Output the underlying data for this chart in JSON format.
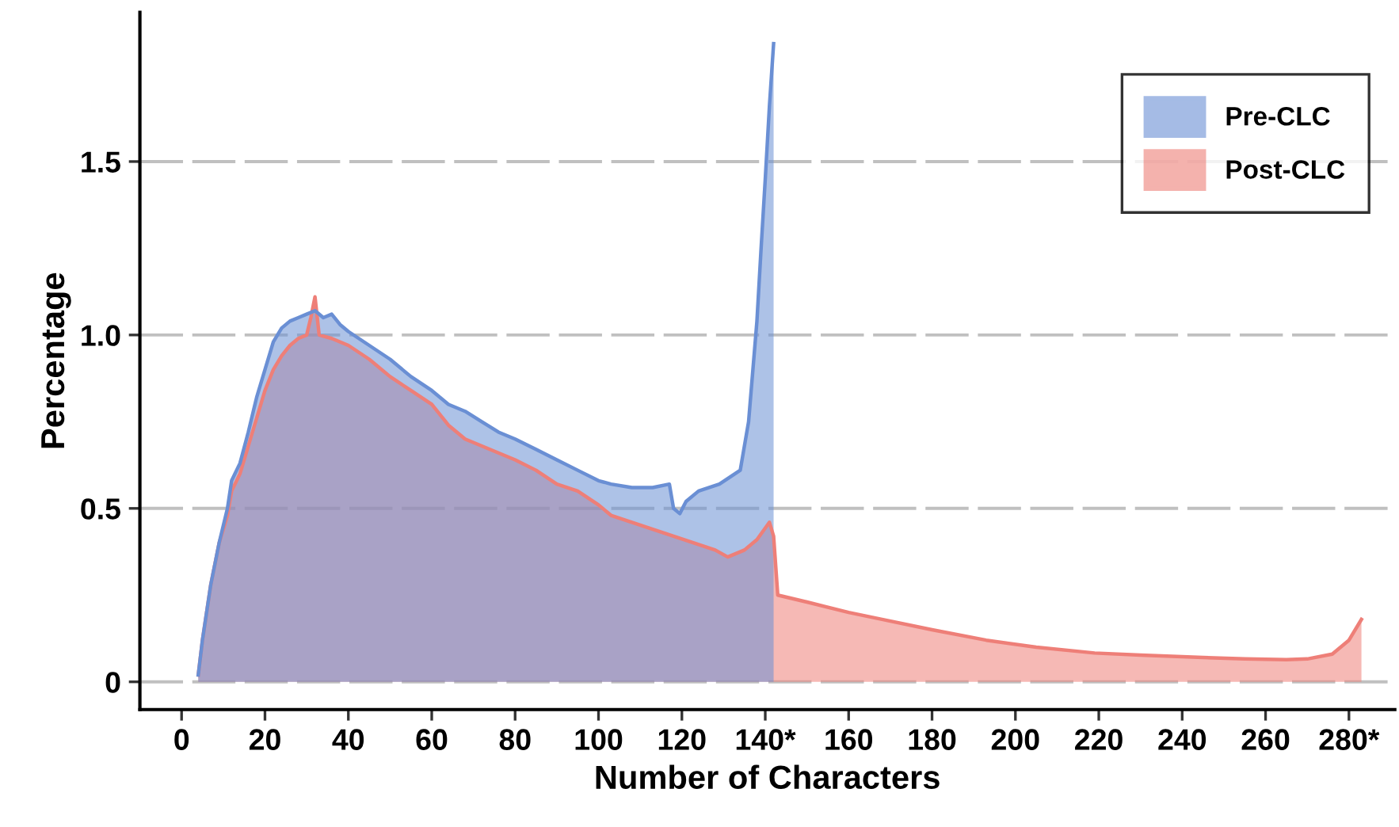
{
  "chart_data": {
    "type": "area",
    "xlabel": "Number of Characters",
    "ylabel": "Percentage",
    "xlim": [
      -10,
      291
    ],
    "ylim": [
      -0.08,
      1.93
    ],
    "xticks": [
      0,
      20,
      40,
      60,
      80,
      100,
      120,
      {
        "value": 140,
        "label": "140*"
      },
      160,
      180,
      200,
      220,
      240,
      260,
      {
        "value": 280,
        "label": "280*"
      }
    ],
    "yticks": [
      {
        "value": 0,
        "label": "0"
      },
      {
        "value": 0.5,
        "label": "0.5"
      },
      {
        "value": 1.0,
        "label": "1.0"
      },
      {
        "value": 1.5,
        "label": "1.5"
      }
    ],
    "grid": "y",
    "legend": "top right",
    "series": [
      {
        "name": "Post-CLC",
        "color": "#ee7f78",
        "x": [
          4,
          5,
          7,
          9,
          11,
          12,
          14,
          16,
          18,
          20,
          22,
          24,
          26,
          28,
          30,
          31,
          32,
          33,
          36,
          40,
          45,
          50,
          55,
          60,
          64,
          68,
          72,
          76,
          80,
          85,
          90,
          95,
          100,
          103,
          108,
          113,
          118,
          123,
          128,
          131,
          135,
          138,
          141,
          142,
          143,
          150,
          160,
          168,
          180,
          193,
          205,
          219,
          230,
          245,
          255,
          265,
          270,
          276,
          280,
          283
        ],
        "values": [
          0.02,
          0.12,
          0.28,
          0.4,
          0.48,
          0.55,
          0.6,
          0.68,
          0.76,
          0.84,
          0.9,
          0.94,
          0.97,
          0.99,
          1.0,
          1.05,
          1.11,
          1.0,
          0.99,
          0.97,
          0.93,
          0.88,
          0.84,
          0.8,
          0.74,
          0.7,
          0.68,
          0.66,
          0.64,
          0.61,
          0.57,
          0.55,
          0.51,
          0.48,
          0.46,
          0.44,
          0.42,
          0.4,
          0.38,
          0.36,
          0.38,
          0.41,
          0.46,
          0.42,
          0.25,
          0.23,
          0.2,
          0.18,
          0.15,
          0.12,
          0.1,
          0.083,
          0.077,
          0.07,
          0.066,
          0.064,
          0.066,
          0.08,
          0.12,
          0.18
        ]
      },
      {
        "name": "Pre-CLC",
        "color": "#6a8fd4",
        "x": [
          4,
          5,
          7,
          9,
          11,
          12,
          14,
          16,
          18,
          20,
          22,
          24,
          26,
          28,
          30,
          32,
          34,
          36,
          38,
          40,
          45,
          50,
          55,
          60,
          64,
          68,
          72,
          76,
          80,
          85,
          90,
          95,
          100,
          103,
          108,
          113,
          117,
          118,
          119.5,
          121,
          124,
          129,
          134,
          136,
          138,
          139,
          140,
          141,
          142
        ],
        "values": [
          0.02,
          0.12,
          0.28,
          0.4,
          0.5,
          0.58,
          0.63,
          0.72,
          0.82,
          0.9,
          0.98,
          1.02,
          1.04,
          1.05,
          1.06,
          1.07,
          1.05,
          1.06,
          1.03,
          1.01,
          0.97,
          0.93,
          0.88,
          0.84,
          0.8,
          0.78,
          0.75,
          0.72,
          0.7,
          0.67,
          0.64,
          0.61,
          0.58,
          0.57,
          0.56,
          0.56,
          0.57,
          0.5,
          0.485,
          0.52,
          0.55,
          0.57,
          0.61,
          0.75,
          1.04,
          1.25,
          1.45,
          1.66,
          1.84
        ]
      }
    ]
  }
}
